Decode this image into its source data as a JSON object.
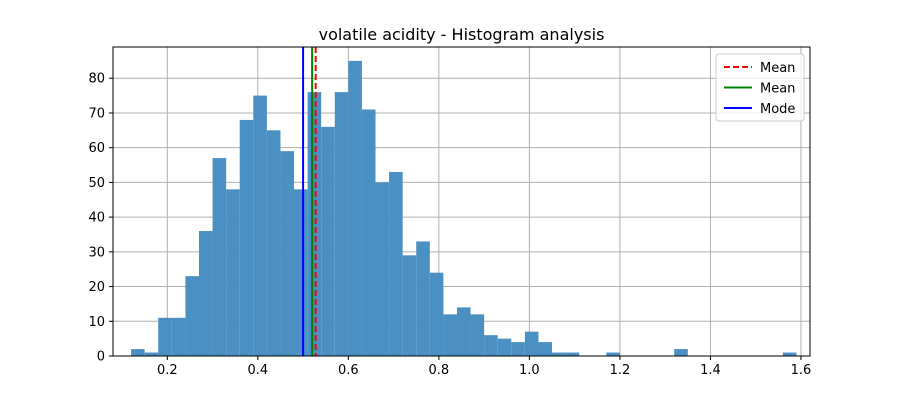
{
  "chart_data": {
    "type": "bar",
    "title": "volatile acidity - Histogram analysis",
    "xlabel": "",
    "ylabel": "",
    "xlim": [
      0.08,
      1.62
    ],
    "ylim": [
      0,
      89
    ],
    "xticks": [
      0.2,
      0.4,
      0.6,
      0.8,
      1.0,
      1.2,
      1.4,
      1.6
    ],
    "xtick_labels": [
      "0.2",
      "0.4",
      "0.6",
      "0.8",
      "1.0",
      "1.2",
      "1.4",
      "1.6"
    ],
    "yticks": [
      0,
      10,
      20,
      30,
      40,
      50,
      60,
      70,
      80
    ],
    "ytick_labels": [
      "0",
      "10",
      "20",
      "30",
      "40",
      "50",
      "60",
      "70",
      "80"
    ],
    "grid": true,
    "bar_color": "#4a90c2",
    "bin_width": 0.03,
    "bins": [
      {
        "x0": 0.12,
        "count": 2
      },
      {
        "x0": 0.15,
        "count": 1
      },
      {
        "x0": 0.18,
        "count": 11
      },
      {
        "x0": 0.21,
        "count": 11
      },
      {
        "x0": 0.24,
        "count": 23
      },
      {
        "x0": 0.27,
        "count": 36
      },
      {
        "x0": 0.3,
        "count": 57
      },
      {
        "x0": 0.33,
        "count": 48
      },
      {
        "x0": 0.36,
        "count": 68
      },
      {
        "x0": 0.39,
        "count": 75
      },
      {
        "x0": 0.42,
        "count": 65
      },
      {
        "x0": 0.45,
        "count": 59
      },
      {
        "x0": 0.48,
        "count": 48
      },
      {
        "x0": 0.51,
        "count": 76
      },
      {
        "x0": 0.54,
        "count": 66
      },
      {
        "x0": 0.57,
        "count": 76
      },
      {
        "x0": 0.6,
        "count": 85
      },
      {
        "x0": 0.63,
        "count": 71
      },
      {
        "x0": 0.66,
        "count": 50
      },
      {
        "x0": 0.69,
        "count": 53
      },
      {
        "x0": 0.72,
        "count": 29
      },
      {
        "x0": 0.75,
        "count": 33
      },
      {
        "x0": 0.78,
        "count": 24
      },
      {
        "x0": 0.81,
        "count": 12
      },
      {
        "x0": 0.84,
        "count": 14
      },
      {
        "x0": 0.87,
        "count": 12
      },
      {
        "x0": 0.9,
        "count": 6
      },
      {
        "x0": 0.93,
        "count": 5
      },
      {
        "x0": 0.96,
        "count": 4
      },
      {
        "x0": 0.99,
        "count": 7
      },
      {
        "x0": 1.02,
        "count": 4
      },
      {
        "x0": 1.05,
        "count": 1
      },
      {
        "x0": 1.08,
        "count": 1
      },
      {
        "x0": 1.17,
        "count": 1
      },
      {
        "x0": 1.32,
        "count": 2
      },
      {
        "x0": 1.56,
        "count": 1
      }
    ],
    "lines": [
      {
        "label": "Mean",
        "x": 0.5278,
        "color": "#ff0000",
        "style": "dashed"
      },
      {
        "label": "Mean",
        "x": 0.52,
        "color": "#008000",
        "style": "solid"
      },
      {
        "label": "Mode",
        "x": 0.5,
        "color": "#0000ff",
        "style": "solid"
      }
    ],
    "legend_position": "top-right"
  }
}
